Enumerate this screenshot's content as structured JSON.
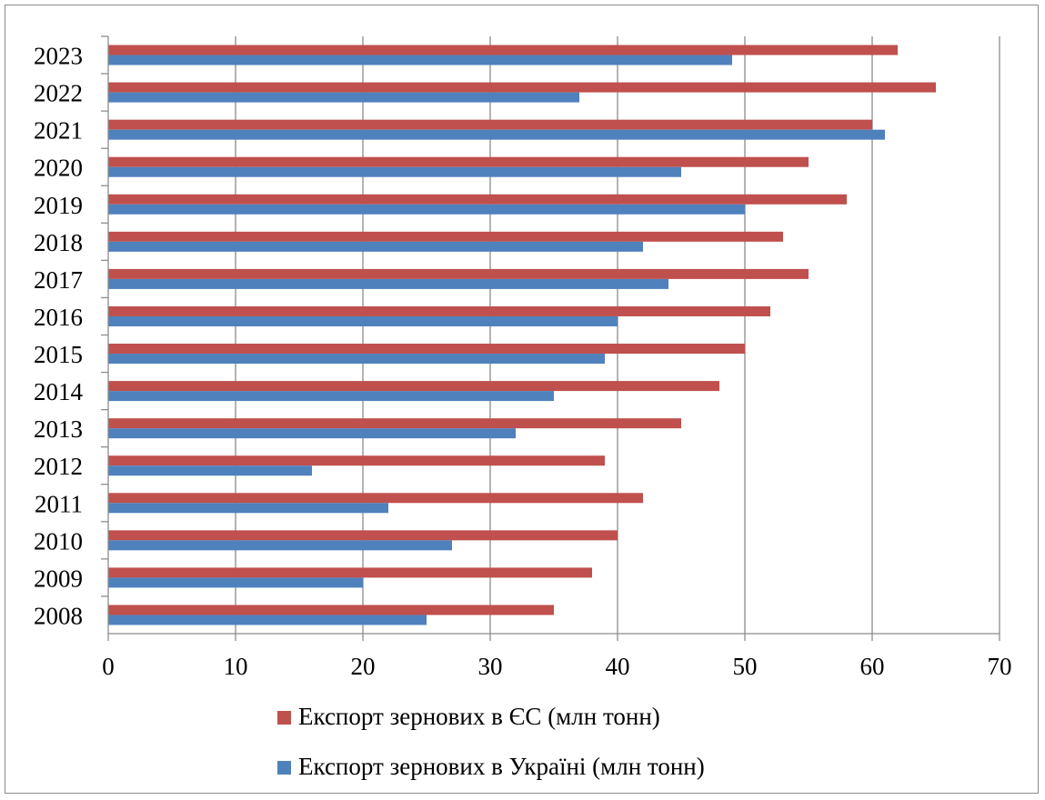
{
  "chart_data": {
    "type": "bar",
    "orientation": "horizontal",
    "title": "",
    "xlabel": "",
    "ylabel": "",
    "categories": [
      "2008",
      "2009",
      "2010",
      "2011",
      "2012",
      "2013",
      "2014",
      "2015",
      "2016",
      "2017",
      "2018",
      "2019",
      "2020",
      "2021",
      "2022",
      "2023"
    ],
    "series": [
      {
        "name": "Експорт зернових в ЄС (млн тонн)",
        "color": "#c0504d",
        "values": [
          35,
          38,
          40,
          42,
          39,
          45,
          48,
          50,
          52,
          55,
          53,
          58,
          55,
          60,
          65,
          62
        ]
      },
      {
        "name": "Експорт зернових в Україні (млн тонн)",
        "color": "#4f81bd",
        "values": [
          25,
          20,
          27,
          22,
          16,
          32,
          35,
          39,
          40,
          44,
          42,
          50,
          45,
          61,
          37,
          49
        ]
      }
    ],
    "xlim": [
      0,
      70
    ],
    "xticks": [
      "0",
      "10",
      "20",
      "30",
      "40",
      "50",
      "60",
      "70"
    ],
    "grid": true,
    "legend_position": "bottom"
  }
}
